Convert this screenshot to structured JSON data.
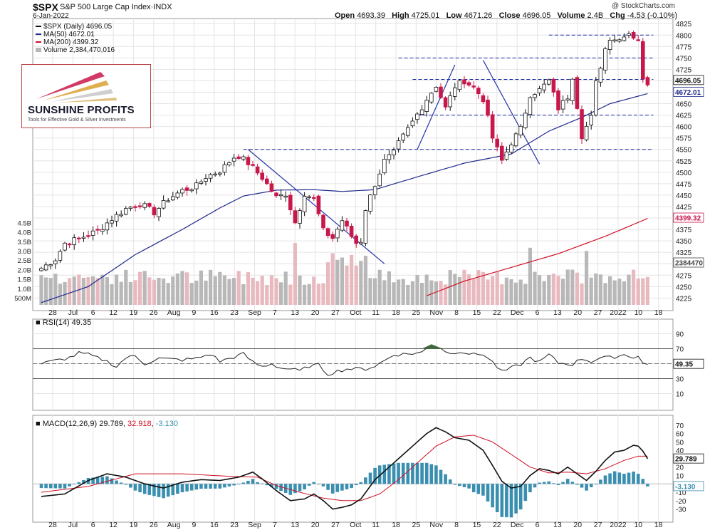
{
  "header": {
    "symbol": "$SPX",
    "name": "S&P 500 Large Cap Index·INDX",
    "date": "6-Jan-2022",
    "copyright": "@ StockCharts.com",
    "ohlc": {
      "open_label": "Open",
      "open": "4693.39",
      "high_label": "High",
      "high": "4725.01",
      "low_label": "Low",
      "low": "4671.26",
      "close_label": "Close",
      "close": "4696.05",
      "volume_label": "Volume",
      "volume": "2.4B",
      "chg_label": "Chg",
      "chg": "-4.53 (-0.10%)"
    }
  },
  "legend": {
    "price": "$SPX (Daily) 4696.05",
    "ma50": "MA(50) 4672.01",
    "ma200": "MA(200) 4399.32",
    "volume": "Volume 2,384,470,016"
  },
  "logo": {
    "brand": "SUNSHINE PROFITS",
    "tagline": "Tools for Effective Gold & Silver Investments"
  },
  "indicators": {
    "rsi_label": "RSI(14) 49.35",
    "macd_label": "MACD(12,26,9)",
    "macd_value": "29.789",
    "macd_signal": "32.918",
    "macd_hist": "-3.130"
  },
  "colors": {
    "up": "#ffffff",
    "down": "#c8174a",
    "ma50": "#1f2a8c",
    "ma200": "#d01025",
    "vol_up": "#b8b8b8",
    "vol_down": "#e8b9be",
    "grid": "#e4e4e4",
    "trendline": "#2233aa",
    "macd_hist": "#3a8fb0",
    "rsi_fill": "#3e6b3e"
  },
  "chart_data": {
    "type": "candlestick",
    "title": "$SPX S&P 500 Large Cap Index",
    "price_axis": {
      "min": 4210,
      "max": 4830,
      "ticks": [
        4225,
        4250,
        4275,
        4300,
        4325,
        4350,
        4375,
        4400,
        4425,
        4450,
        4475,
        4500,
        4525,
        4550,
        4575,
        4600,
        4625,
        4650,
        4675,
        4700,
        4725,
        4750,
        4775,
        4800,
        4825
      ]
    },
    "price_tags": {
      "last": "4696.05",
      "ma50": "4672.01",
      "ma200": "4399.32",
      "volume": "2384470"
    },
    "volume_axis": {
      "labels": [
        "500M",
        "1.0B",
        "1.5B",
        "2.0B",
        "2.5B",
        "3.0B",
        "3.5B",
        "4.0B",
        "4.5B"
      ]
    },
    "x_labels": [
      "28",
      "Jul",
      "6",
      "12",
      "19",
      "26",
      "Aug",
      "9",
      "16",
      "23",
      "Sep",
      "7",
      "13",
      "20",
      "27",
      "Oct",
      "11",
      "18",
      "25",
      "Nov",
      "8",
      "15",
      "22",
      "Dec",
      "6",
      "13",
      "20",
      "27",
      "2022",
      "10",
      "18"
    ],
    "anchors": [
      [
        0,
        4290
      ],
      [
        3,
        4310
      ],
      [
        5,
        4345
      ],
      [
        8,
        4355
      ],
      [
        12,
        4372
      ],
      [
        15,
        4398
      ],
      [
        18,
        4420
      ],
      [
        21,
        4432
      ],
      [
        24,
        4412
      ],
      [
        27,
        4442
      ],
      [
        30,
        4460
      ],
      [
        33,
        4470
      ],
      [
        35,
        4490
      ],
      [
        38,
        4503
      ],
      [
        41,
        4533
      ],
      [
        42,
        4536
      ],
      [
        44,
        4520
      ],
      [
        47,
        4488
      ],
      [
        50,
        4445
      ],
      [
        52,
        4453
      ],
      [
        54,
        4390
      ],
      [
        56,
        4454
      ],
      [
        58,
        4442
      ],
      [
        60,
        4372
      ],
      [
        62,
        4356
      ],
      [
        64,
        4395
      ],
      [
        66,
        4360
      ],
      [
        67,
        4345
      ],
      [
        68,
        4350
      ],
      [
        69,
        4420
      ],
      [
        71,
        4474
      ],
      [
        73,
        4525
      ],
      [
        75,
        4542
      ],
      [
        76,
        4563
      ],
      [
        79,
        4610
      ],
      [
        82,
        4660
      ],
      [
        84,
        4690
      ],
      [
        86,
        4640
      ],
      [
        88,
        4688
      ],
      [
        90,
        4700
      ],
      [
        92,
        4685
      ],
      [
        94,
        4660
      ],
      [
        96,
        4575
      ],
      [
        98,
        4525
      ],
      [
        100,
        4565
      ],
      [
        102,
        4595
      ],
      [
        104,
        4670
      ],
      [
        106,
        4680
      ],
      [
        108,
        4700
      ],
      [
        110,
        4640
      ],
      [
        112,
        4665
      ],
      [
        113,
        4710
      ],
      [
        115,
        4580
      ],
      [
        117,
        4620
      ],
      [
        118,
        4695
      ],
      [
        120,
        4770
      ],
      [
        121,
        4795
      ],
      [
        123,
        4790
      ],
      [
        124,
        4802
      ],
      [
        125,
        4805
      ],
      [
        126,
        4797
      ],
      [
        127,
        4792
      ],
      [
        128,
        4700
      ],
      [
        129,
        4696
      ]
    ],
    "ma50": [
      [
        0,
        4215
      ],
      [
        10,
        4250
      ],
      [
        20,
        4320
      ],
      [
        30,
        4375
      ],
      [
        38,
        4422
      ],
      [
        43,
        4448
      ],
      [
        50,
        4461
      ],
      [
        58,
        4462
      ],
      [
        64,
        4458
      ],
      [
        71,
        4462
      ],
      [
        80,
        4490
      ],
      [
        90,
        4520
      ],
      [
        100,
        4540
      ],
      [
        108,
        4590
      ],
      [
        115,
        4620
      ],
      [
        121,
        4650
      ],
      [
        129,
        4672
      ]
    ],
    "ma200": [
      [
        82,
        4230
      ],
      [
        90,
        4262
      ],
      [
        100,
        4292
      ],
      [
        110,
        4322
      ],
      [
        120,
        4360
      ],
      [
        129,
        4399
      ]
    ],
    "h_lines": [
      {
        "price": 4800,
        "from": 108,
        "to": 129
      },
      {
        "price": 4750,
        "from": 76,
        "to": 129
      },
      {
        "price": 4703,
        "from": 79,
        "to": 129
      },
      {
        "price": 4625,
        "from": 80,
        "to": 129
      },
      {
        "price": 4550,
        "from": 43,
        "to": 129
      }
    ],
    "trend_lines": [
      [
        44,
        4550,
        73,
        4300
      ],
      [
        80,
        4550,
        88,
        4735
      ],
      [
        94,
        4745,
        106,
        4518
      ]
    ],
    "rsi": {
      "value": "49.35",
      "ticks": [
        "90",
        "70",
        "50",
        "30",
        "10"
      ],
      "lines": [
        70,
        30
      ],
      "anchors": [
        [
          0,
          50
        ],
        [
          6,
          58
        ],
        [
          8,
          64
        ],
        [
          10,
          62
        ],
        [
          14,
          53
        ],
        [
          16,
          46
        ],
        [
          18,
          58
        ],
        [
          20,
          60
        ],
        [
          22,
          50
        ],
        [
          25,
          57
        ],
        [
          27,
          56
        ],
        [
          30,
          55
        ],
        [
          33,
          57
        ],
        [
          36,
          63
        ],
        [
          38,
          53
        ],
        [
          40,
          57
        ],
        [
          43,
          63
        ],
        [
          45,
          52
        ],
        [
          47,
          46
        ],
        [
          49,
          50
        ],
        [
          51,
          44
        ],
        [
          53,
          43
        ],
        [
          55,
          40
        ],
        [
          57,
          47
        ],
        [
          59,
          48
        ],
        [
          61,
          36
        ],
        [
          63,
          40
        ],
        [
          65,
          43
        ],
        [
          67,
          43
        ],
        [
          69,
          43
        ],
        [
          71,
          47
        ],
        [
          73,
          54
        ],
        [
          75,
          62
        ],
        [
          78,
          63
        ],
        [
          81,
          65
        ],
        [
          83,
          76
        ],
        [
          85,
          71
        ],
        [
          87,
          63
        ],
        [
          89,
          67
        ],
        [
          92,
          62
        ],
        [
          94,
          63
        ],
        [
          96,
          52
        ],
        [
          98,
          39
        ],
        [
          100,
          44
        ],
        [
          102,
          49
        ],
        [
          104,
          58
        ],
        [
          106,
          52
        ],
        [
          108,
          62
        ],
        [
          110,
          51
        ],
        [
          113,
          49
        ],
        [
          115,
          57
        ],
        [
          117,
          53
        ],
        [
          119,
          58
        ],
        [
          121,
          58
        ],
        [
          124,
          62
        ],
        [
          126,
          59
        ],
        [
          127,
          60
        ],
        [
          128,
          50
        ],
        [
          129,
          49
        ]
      ]
    },
    "macd": {
      "ticks": [
        "70",
        "60",
        "50",
        "40",
        "30",
        "20",
        "10",
        "-10",
        "-20",
        "-30"
      ],
      "line": [
        [
          0,
          -15
        ],
        [
          5,
          -12
        ],
        [
          10,
          4
        ],
        [
          14,
          12
        ],
        [
          18,
          8
        ],
        [
          22,
          0
        ],
        [
          26,
          -5
        ],
        [
          30,
          2
        ],
        [
          34,
          5
        ],
        [
          38,
          4
        ],
        [
          42,
          8
        ],
        [
          45,
          14
        ],
        [
          47,
          6
        ],
        [
          50,
          -8
        ],
        [
          53,
          -20
        ],
        [
          56,
          -18
        ],
        [
          58,
          -12
        ],
        [
          60,
          -20
        ],
        [
          62,
          -30
        ],
        [
          64,
          -28
        ],
        [
          66,
          -25
        ],
        [
          68,
          -18
        ],
        [
          71,
          5
        ],
        [
          74,
          20
        ],
        [
          77,
          35
        ],
        [
          80,
          50
        ],
        [
          82,
          60
        ],
        [
          84,
          67
        ],
        [
          86,
          62
        ],
        [
          88,
          55
        ],
        [
          91,
          52
        ],
        [
          94,
          40
        ],
        [
          96,
          22
        ],
        [
          98,
          3
        ],
        [
          100,
          -5
        ],
        [
          102,
          -3
        ],
        [
          104,
          10
        ],
        [
          106,
          18
        ],
        [
          108,
          16
        ],
        [
          110,
          12
        ],
        [
          112,
          20
        ],
        [
          114,
          12
        ],
        [
          116,
          4
        ],
        [
          118,
          15
        ],
        [
          120,
          28
        ],
        [
          122,
          38
        ],
        [
          124,
          40
        ],
        [
          126,
          46
        ],
        [
          127,
          45
        ],
        [
          128,
          39
        ],
        [
          129,
          30
        ]
      ],
      "signal": [
        [
          0,
          -10
        ],
        [
          10,
          -3
        ],
        [
          20,
          12
        ],
        [
          30,
          12
        ],
        [
          40,
          9
        ],
        [
          46,
          8
        ],
        [
          50,
          -2
        ],
        [
          55,
          -10
        ],
        [
          60,
          -17
        ],
        [
          64,
          -20
        ],
        [
          68,
          -20
        ],
        [
          72,
          -12
        ],
        [
          76,
          5
        ],
        [
          80,
          25
        ],
        [
          84,
          45
        ],
        [
          88,
          56
        ],
        [
          92,
          58
        ],
        [
          96,
          50
        ],
        [
          100,
          35
        ],
        [
          104,
          20
        ],
        [
          108,
          13
        ],
        [
          112,
          14
        ],
        [
          116,
          12
        ],
        [
          120,
          18
        ],
        [
          124,
          28
        ],
        [
          127,
          33
        ],
        [
          129,
          33
        ]
      ]
    }
  }
}
